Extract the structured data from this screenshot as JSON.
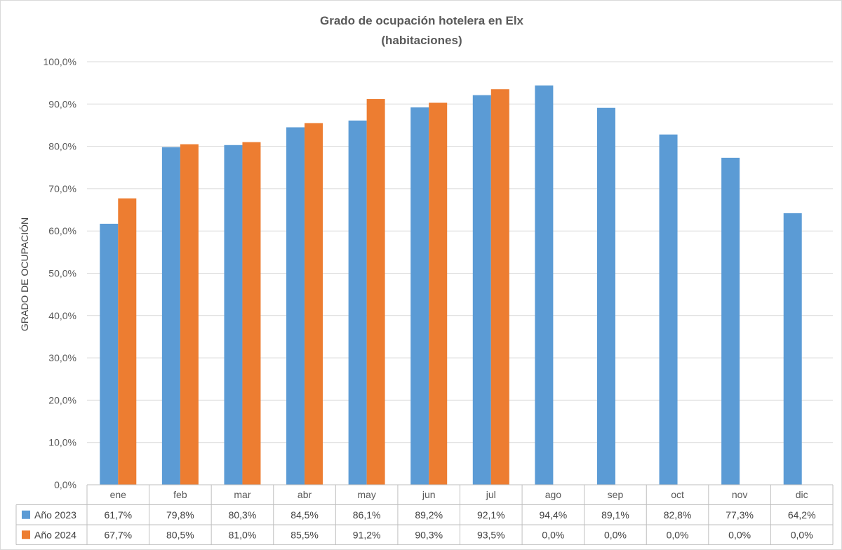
{
  "chart_data": {
    "type": "bar",
    "title_line1": "Grado de ocupación hotelera en Elx",
    "title_line2": "(habitaciones)",
    "ylabel": "GRADO DE OCUPACIÓN",
    "xlabel": "",
    "ylim": [
      0,
      100
    ],
    "y_ticks": [
      "0,0%",
      "10,0%",
      "20,0%",
      "30,0%",
      "40,0%",
      "50,0%",
      "60,0%",
      "70,0%",
      "80,0%",
      "90,0%",
      "100,0%"
    ],
    "categories": [
      "ene",
      "feb",
      "mar",
      "abr",
      "may",
      "jun",
      "jul",
      "ago",
      "sep",
      "oct",
      "nov",
      "dic"
    ],
    "legend_placement": "data-table",
    "grid": true,
    "series": [
      {
        "name": "Año 2023",
        "color": "#5b9bd5",
        "values": [
          61.7,
          79.8,
          80.3,
          84.5,
          86.1,
          89.2,
          92.1,
          94.4,
          89.1,
          82.8,
          77.3,
          64.2
        ],
        "labels": [
          "61,7%",
          "79,8%",
          "80,3%",
          "84,5%",
          "86,1%",
          "89,2%",
          "92,1%",
          "94,4%",
          "89,1%",
          "82,8%",
          "77,3%",
          "64,2%"
        ]
      },
      {
        "name": "Año 2024",
        "color": "#ed7d31",
        "values": [
          67.7,
          80.5,
          81.0,
          85.5,
          91.2,
          90.3,
          93.5,
          0,
          0,
          0,
          0,
          0
        ],
        "labels": [
          "67,7%",
          "80,5%",
          "81,0%",
          "85,5%",
          "91,2%",
          "90,3%",
          "93,5%",
          "0,0%",
          "0,0%",
          "0,0%",
          "0,0%",
          "0,0%"
        ]
      }
    ]
  }
}
